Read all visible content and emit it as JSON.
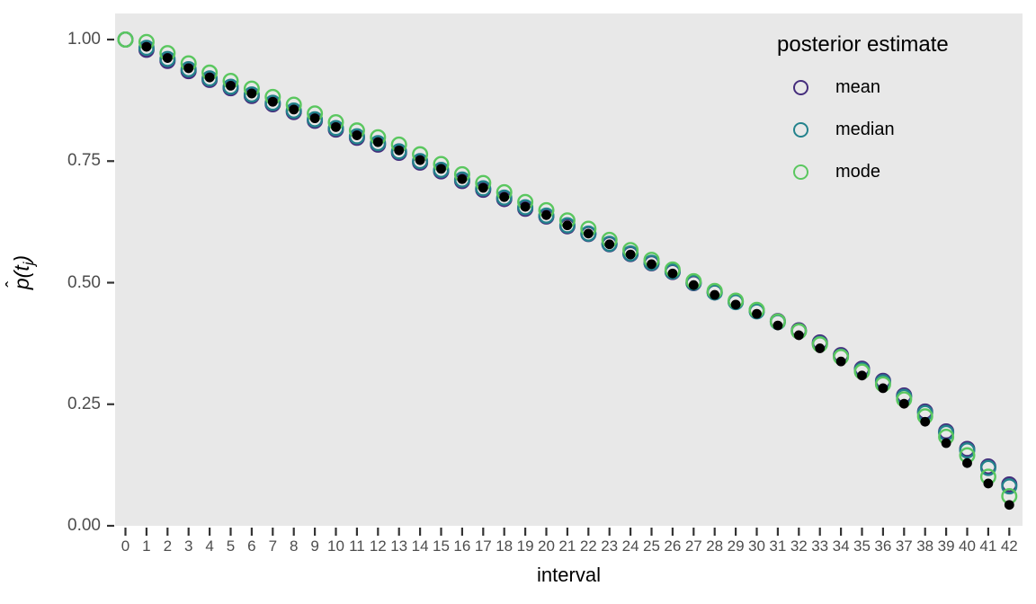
{
  "figure": {
    "background": "#ffffff",
    "panel_background": "#e8e8e8",
    "tick_mark_color": "#333333",
    "tick_label_color": "#4d4d4d"
  },
  "axes": {
    "x": {
      "title": "interval"
    },
    "y": {
      "title_hat": "ˆ",
      "title_p": "p",
      "title_open": "(t",
      "title_sub": "j",
      "title_close": ")",
      "tick_labels": [
        "0.00",
        "0.25",
        "0.50",
        "0.75",
        "1.00"
      ]
    }
  },
  "legend": {
    "title": "posterior estimate",
    "items": [
      {
        "label": "mean",
        "color": "#452d7c"
      },
      {
        "label": "median",
        "color": "#23828c"
      },
      {
        "label": "mode",
        "color": "#5ac75f"
      }
    ]
  },
  "chart_data": {
    "type": "scatter",
    "title": "",
    "xlabel": "interval",
    "ylabel": "p_hat(t_j)",
    "xlim": [
      0,
      42
    ],
    "ylim": [
      0.0,
      1.0
    ],
    "x": [
      0,
      1,
      2,
      3,
      4,
      5,
      6,
      7,
      8,
      9,
      10,
      11,
      12,
      13,
      14,
      15,
      16,
      17,
      18,
      19,
      20,
      21,
      22,
      23,
      24,
      25,
      26,
      27,
      28,
      29,
      30,
      31,
      32,
      33,
      34,
      35,
      36,
      37,
      38,
      39,
      40,
      41,
      42
    ],
    "yticks": [
      0.0,
      0.25,
      0.5,
      0.75,
      1.0
    ],
    "grid": false,
    "legend_position": "inside top-right",
    "series": [
      {
        "name": "mean",
        "marker": "open-circle",
        "color": "#452d7c",
        "values": [
          1.0,
          0.979,
          0.956,
          0.935,
          0.917,
          0.9,
          0.884,
          0.867,
          0.851,
          0.833,
          0.815,
          0.798,
          0.784,
          0.767,
          0.747,
          0.729,
          0.709,
          0.691,
          0.672,
          0.652,
          0.636,
          0.616,
          0.6,
          0.579,
          0.559,
          0.54,
          0.522,
          0.499,
          0.48,
          0.461,
          0.443,
          0.421,
          0.402,
          0.377,
          0.351,
          0.323,
          0.298,
          0.268,
          0.235,
          0.194,
          0.158,
          0.122,
          0.085
        ]
      },
      {
        "name": "median",
        "marker": "open-circle",
        "color": "#23828c",
        "values": [
          1.0,
          0.983,
          0.96,
          0.939,
          0.92,
          0.903,
          0.887,
          0.87,
          0.854,
          0.836,
          0.818,
          0.801,
          0.787,
          0.77,
          0.75,
          0.732,
          0.712,
          0.694,
          0.675,
          0.655,
          0.638,
          0.618,
          0.601,
          0.58,
          0.56,
          0.541,
          0.523,
          0.5,
          0.48,
          0.46,
          0.441,
          0.419,
          0.4,
          0.374,
          0.348,
          0.32,
          0.295,
          0.265,
          0.232,
          0.191,
          0.155,
          0.119,
          0.081
        ]
      },
      {
        "name": "mode",
        "marker": "open-circle",
        "color": "#5ac75f",
        "values": [
          1.0,
          0.995,
          0.972,
          0.951,
          0.932,
          0.915,
          0.899,
          0.882,
          0.866,
          0.848,
          0.83,
          0.813,
          0.799,
          0.784,
          0.764,
          0.744,
          0.723,
          0.705,
          0.686,
          0.666,
          0.649,
          0.628,
          0.611,
          0.588,
          0.567,
          0.547,
          0.527,
          0.503,
          0.483,
          0.463,
          0.444,
          0.42,
          0.4,
          0.373,
          0.347,
          0.317,
          0.291,
          0.26,
          0.225,
          0.183,
          0.145,
          0.101,
          0.061
        ]
      },
      {
        "name": "unlabeled black point",
        "marker": "filled-circle",
        "color": "#000000",
        "values": [
          null,
          0.985,
          0.962,
          0.941,
          0.922,
          0.905,
          0.889,
          0.872,
          0.856,
          0.838,
          0.82,
          0.803,
          0.789,
          0.772,
          0.752,
          0.734,
          0.713,
          0.695,
          0.676,
          0.656,
          0.639,
          0.618,
          0.601,
          0.579,
          0.558,
          0.538,
          0.519,
          0.495,
          0.475,
          0.455,
          0.436,
          0.412,
          0.392,
          0.365,
          0.338,
          0.309,
          0.283,
          0.251,
          0.214,
          0.17,
          0.129,
          0.087,
          0.043
        ]
      }
    ]
  }
}
